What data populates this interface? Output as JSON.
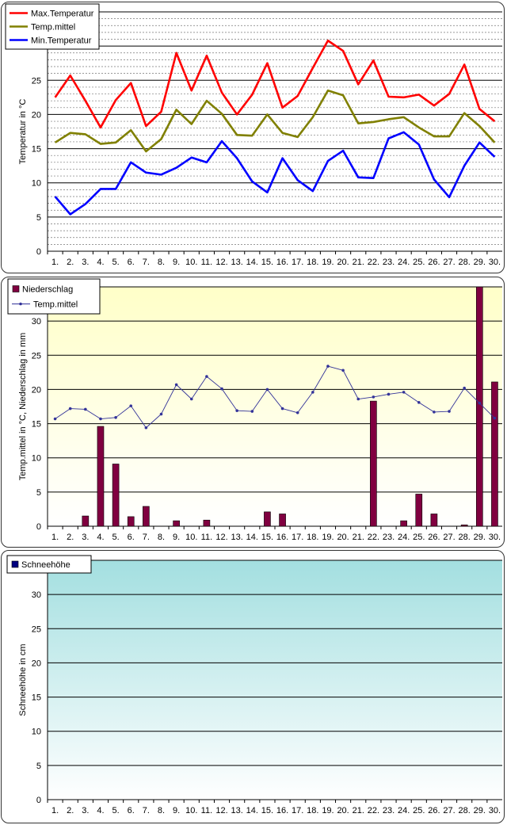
{
  "chart_data": [
    {
      "type": "line",
      "ylabel": "Temperatur in °C",
      "ylim": [
        0,
        35
      ],
      "yticks": [
        0,
        5,
        10,
        15,
        20,
        25,
        30
      ],
      "x": [
        "1.",
        "2.",
        "3.",
        "4.",
        "5.",
        "6.",
        "7.",
        "8.",
        "9.",
        "10.",
        "11.",
        "12.",
        "13.",
        "14.",
        "15.",
        "16.",
        "17.",
        "18.",
        "19.",
        "20.",
        "21.",
        "22.",
        "23.",
        "24.",
        "25.",
        "26.",
        "27.",
        "28.",
        "29.",
        "30."
      ],
      "grid": "major and minor horizontal gridlines",
      "legend_position": "top-left",
      "series": [
        {
          "name": "Max.Temperatur",
          "color": "#ff0000",
          "values": [
            22.5,
            25.7,
            22.0,
            18.1,
            22.1,
            24.6,
            18.3,
            20.4,
            29.0,
            23.5,
            28.6,
            23.2,
            20.0,
            22.9,
            27.5,
            21.0,
            22.7,
            26.8,
            30.8,
            29.3,
            24.4,
            27.9,
            22.6,
            22.5,
            22.9,
            21.3,
            23.0,
            27.3,
            20.8,
            19.0
          ]
        },
        {
          "name": "Temp.mittel",
          "color": "#808000",
          "values": [
            15.9,
            17.3,
            17.1,
            15.7,
            15.9,
            17.7,
            14.6,
            16.4,
            20.7,
            18.6,
            22.0,
            20.1,
            17.0,
            16.9,
            20.0,
            17.3,
            16.7,
            19.6,
            23.5,
            22.8,
            18.7,
            18.9,
            19.3,
            19.6,
            18.1,
            16.8,
            16.8,
            20.2,
            18.3,
            15.9
          ]
        },
        {
          "name": "Min.Temperatur",
          "color": "#0000ff",
          "values": [
            8.0,
            5.4,
            6.9,
            9.1,
            9.1,
            13.0,
            11.5,
            11.2,
            12.2,
            13.7,
            13.0,
            16.1,
            13.6,
            10.2,
            8.6,
            13.6,
            10.4,
            8.8,
            13.2,
            14.7,
            10.8,
            10.7,
            16.5,
            17.4,
            15.6,
            10.5,
            7.9,
            12.5,
            15.9,
            13.8
          ]
        }
      ]
    },
    {
      "type": "bar",
      "ylabel": "Temp.mittel  in °C, Niederschlag in mm",
      "ylim": [
        0,
        35
      ],
      "yticks": [
        0,
        5,
        10,
        15,
        20,
        25,
        30
      ],
      "x": [
        "1.",
        "2.",
        "3.",
        "4.",
        "5.",
        "6.",
        "7.",
        "8.",
        "9.",
        "10.",
        "11.",
        "12.",
        "13.",
        "14.",
        "15.",
        "16.",
        "17.",
        "18.",
        "19.",
        "20.",
        "21.",
        "22.",
        "23.",
        "24.",
        "25.",
        "26.",
        "27.",
        "28.",
        "29.",
        "30."
      ],
      "legend_position": "top-left",
      "background": "gradient yellow to white",
      "series": [
        {
          "name": "Niederschlag",
          "kind": "bar",
          "color": "#800040",
          "values": [
            0,
            0,
            1.5,
            14.6,
            9.1,
            1.4,
            2.9,
            0,
            0.8,
            0,
            0.9,
            0,
            0,
            0,
            2.1,
            1.8,
            0,
            0,
            0,
            0,
            0,
            18.3,
            0,
            0.8,
            4.7,
            1.8,
            0,
            0.2,
            35.0,
            21.1
          ]
        },
        {
          "name": "Temp.mittel",
          "kind": "line",
          "color": "#333399",
          "values": [
            15.7,
            17.2,
            17.1,
            15.7,
            15.9,
            17.6,
            14.4,
            16.4,
            20.7,
            18.6,
            21.9,
            20.1,
            16.9,
            16.8,
            20.0,
            17.2,
            16.6,
            19.6,
            23.4,
            22.8,
            18.6,
            18.9,
            19.3,
            19.6,
            18.1,
            16.7,
            16.8,
            20.2,
            18.0,
            15.8
          ]
        }
      ]
    },
    {
      "type": "bar",
      "ylabel": "Schneehöhe in cm",
      "ylim": [
        0,
        35
      ],
      "yticks": [
        0,
        5,
        10,
        15,
        20,
        25,
        30
      ],
      "x": [
        "1.",
        "2.",
        "3.",
        "4.",
        "5.",
        "6.",
        "7.",
        "8.",
        "9.",
        "10.",
        "11.",
        "12.",
        "13.",
        "14.",
        "15.",
        "16.",
        "17.",
        "18.",
        "19.",
        "20.",
        "21.",
        "22.",
        "23.",
        "24.",
        "25.",
        "26.",
        "27.",
        "28.",
        "29.",
        "30."
      ],
      "legend_position": "top-left",
      "background": "gradient teal to white",
      "series": [
        {
          "name": "Schneehöhe",
          "kind": "bar",
          "color": "#000080",
          "values": [
            0,
            0,
            0,
            0,
            0,
            0,
            0,
            0,
            0,
            0,
            0,
            0,
            0,
            0,
            0,
            0,
            0,
            0,
            0,
            0,
            0,
            0,
            0,
            0,
            0,
            0,
            0,
            0,
            0,
            0
          ]
        }
      ]
    }
  ]
}
